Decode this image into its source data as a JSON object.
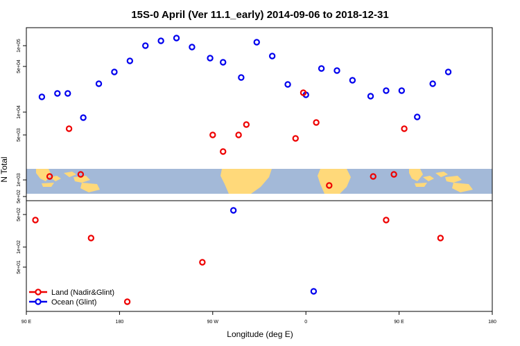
{
  "chart_data": {
    "type": "scatter",
    "title": "15S-0 April (Ver 11.1_early)   2014-09-06 to 2018-12-31",
    "xlabel": "Longitude (deg E)",
    "ylabel": "N Total",
    "x_ticks": [
      "90 E",
      "180",
      "90 W",
      "0",
      "90 E",
      "180"
    ],
    "y_ticks": [
      "5e+02",
      "1e+03",
      "5e+03",
      "1e+04",
      "5e+04",
      "1e+05"
    ],
    "lower_y_ticks": [
      "5e+01",
      "1e+02",
      "5e+02"
    ],
    "legend": {
      "placement": "bottom-left",
      "entries": [
        {
          "name": "Land (Nadir&Glint)",
          "color": "#ee0000"
        },
        {
          "name": "Ocean (Glint)",
          "color": "#0000ee"
        }
      ]
    },
    "colors": {
      "land": "#ee0000",
      "ocean": "#0000ee",
      "map_ocean": "#a3b9d8",
      "map_land": "#ffd97a"
    },
    "series": [
      {
        "name": "Ocean (Glint)",
        "points": [
          [
            6,
            140
          ],
          [
            12,
            135
          ],
          [
            16,
            135
          ],
          [
            22,
            170
          ],
          [
            28,
            121
          ],
          [
            34,
            104
          ],
          [
            40,
            88
          ],
          [
            46,
            66
          ],
          [
            52,
            59
          ],
          [
            58,
            55
          ],
          [
            64,
            68
          ],
          [
            71,
            84
          ],
          [
            76,
            90
          ],
          [
            83,
            112
          ],
          [
            89,
            61
          ],
          [
            95,
            81
          ],
          [
            101,
            122
          ],
          [
            108,
            137
          ],
          [
            114,
            99
          ],
          [
            120,
            102
          ],
          [
            126,
            116
          ],
          [
            133,
            139
          ],
          [
            139,
            131
          ],
          [
            145,
            131
          ],
          [
            151,
            169
          ],
          [
            157,
            121
          ],
          [
            163,
            104
          ]
        ]
      },
      {
        "name": "Land (Nadir&Glint)",
        "points": [
          [
            16.5,
            186
          ],
          [
            72,
            195
          ],
          [
            76,
            219
          ],
          [
            82,
            195
          ],
          [
            85,
            180
          ],
          [
            104,
            200
          ],
          [
            107,
            134
          ],
          [
            112,
            177
          ],
          [
            146,
            186
          ]
        ]
      }
    ],
    "map_series": [
      {
        "name": "Land (Nadir&Glint)",
        "points": [
          [
            9,
            255
          ],
          [
            21,
            252
          ],
          [
            117,
            268
          ],
          [
            134,
            255
          ],
          [
            142,
            252
          ]
        ]
      }
    ],
    "lower_series": [
      {
        "name": "Ocean (Glint)",
        "points": [
          [
            80,
            304
          ],
          [
            111,
            421
          ]
        ]
      },
      {
        "name": "Land (Nadir&Glint)",
        "points": [
          [
            3.5,
            318
          ],
          [
            25,
            344
          ],
          [
            39,
            436
          ],
          [
            68,
            379
          ],
          [
            139,
            318
          ],
          [
            160,
            344
          ]
        ]
      }
    ]
  }
}
